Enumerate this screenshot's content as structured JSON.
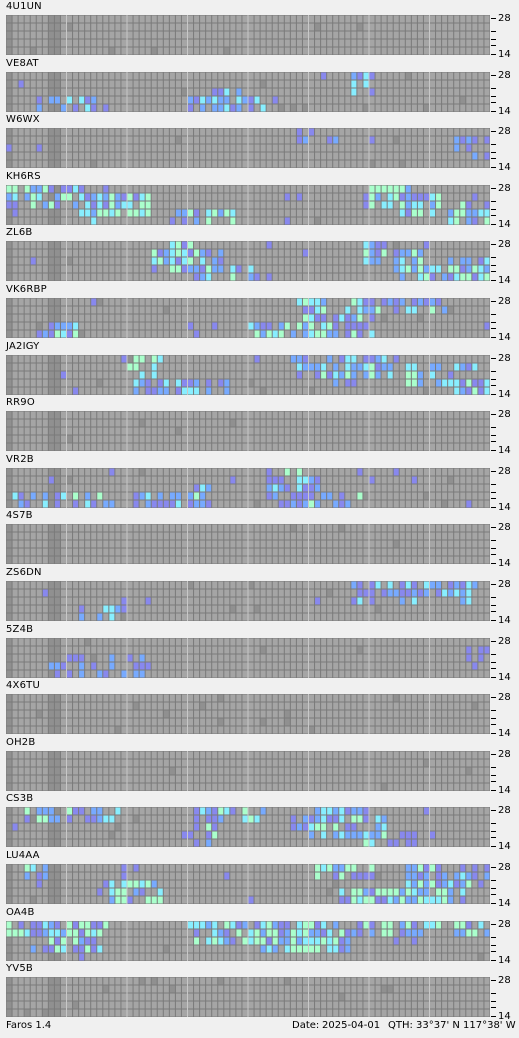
{
  "status": {
    "app": "Faros 1.4",
    "date_label": "Date:",
    "date": "2025-04-01",
    "qth_label": "QTH:",
    "lat": "33°37' N",
    "lon": "117°38' W"
  },
  "axis": {
    "top": "28",
    "mid": "-",
    "bottom": "14"
  },
  "colors": {
    "background": "#f0f0f0",
    "grid_bg": "#7a7a7a",
    "cell_off": "#a5a5a5",
    "cell_dark": "#909090",
    "divider": "#c8c8c8",
    "weak": "#8888ee",
    "medium": "#77aaff",
    "strong": "#88eeff",
    "very_strong": "#aaffcc"
  },
  "beacons": [
    {
      "call": "4U1UN",
      "activity": 0
    },
    {
      "call": "VE8AT",
      "activity": 2
    },
    {
      "call": "W6WX",
      "activity": 1
    },
    {
      "call": "KH6RS",
      "activity": 4
    },
    {
      "call": "ZL6B",
      "activity": 4
    },
    {
      "call": "VK6RBP",
      "activity": 3
    },
    {
      "call": "JA2IGY",
      "activity": 3
    },
    {
      "call": "RR9O",
      "activity": 0
    },
    {
      "call": "VR2B",
      "activity": 3
    },
    {
      "call": "4S7B",
      "activity": 0
    },
    {
      "call": "ZS6DN",
      "activity": 2
    },
    {
      "call": "5Z4B",
      "activity": 1
    },
    {
      "call": "4X6TU",
      "activity": 0
    },
    {
      "call": "OH2B",
      "activity": 0
    },
    {
      "call": "CS3B",
      "activity": 3
    },
    {
      "call": "LU4AA",
      "activity": 4
    },
    {
      "call": "OA4B",
      "activity": 4
    },
    {
      "call": "YV5B",
      "activity": 0
    }
  ]
}
